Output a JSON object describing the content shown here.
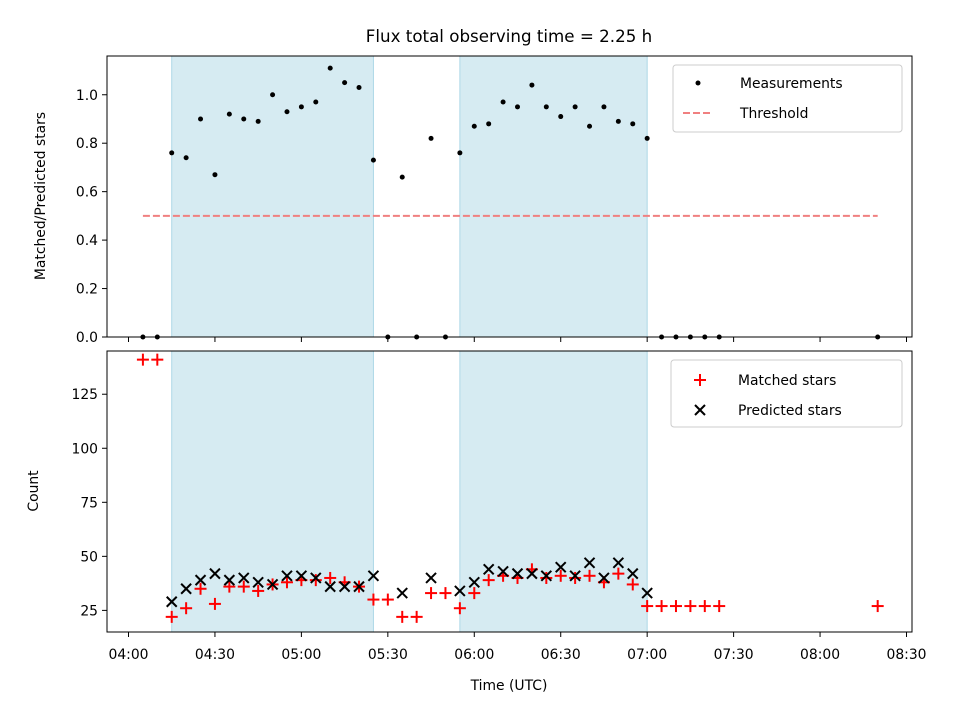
{
  "chart_data": [
    {
      "type": "scatter",
      "title": "Flux total observing time = 2.25 h",
      "xlabel": "",
      "ylabel": "Matched/Predicted stars",
      "xlim": [
        "04:00",
        "08:30"
      ],
      "ylim": [
        0,
        1.16
      ],
      "yticks": [
        0.0,
        0.2,
        0.4,
        0.6,
        0.8,
        1.0
      ],
      "ytick_labels": [
        "0.0",
        "0.2",
        "0.4",
        "0.6",
        "0.8",
        "1.0"
      ],
      "shaded_intervals": [
        [
          "04:15",
          "05:25"
        ],
        [
          "05:55",
          "07:00"
        ]
      ],
      "legend_placement": "top-right",
      "series": [
        {
          "name": "Measurements",
          "marker": "dot",
          "color": "#000000",
          "x": [
            "04:05",
            "04:10",
            "04:15",
            "04:20",
            "04:25",
            "04:30",
            "04:35",
            "04:40",
            "04:45",
            "04:50",
            "04:55",
            "05:00",
            "05:05",
            "05:10",
            "05:15",
            "05:20",
            "05:25",
            "05:30",
            "05:35",
            "05:40",
            "05:45",
            "05:50",
            "05:55",
            "06:00",
            "06:05",
            "06:10",
            "06:15",
            "06:20",
            "06:25",
            "06:30",
            "06:35",
            "06:40",
            "06:45",
            "06:50",
            "06:55",
            "07:00",
            "07:05",
            "07:10",
            "07:15",
            "07:20",
            "07:25",
            "08:20"
          ],
          "y": [
            0.0,
            0.0,
            0.76,
            0.74,
            0.9,
            0.67,
            0.92,
            0.9,
            0.89,
            1.0,
            0.93,
            0.95,
            0.97,
            1.11,
            1.05,
            1.03,
            0.73,
            0.0,
            0.66,
            0.0,
            0.82,
            0.0,
            0.76,
            0.87,
            0.88,
            0.97,
            0.95,
            1.04,
            0.95,
            0.91,
            0.95,
            0.87,
            0.95,
            0.89,
            0.88,
            0.82,
            0.0,
            0.0,
            0.0,
            0.0,
            0.0,
            0.0
          ]
        },
        {
          "name": "Threshold",
          "type": "line",
          "style": "dashed",
          "color": "#f08080",
          "x": [
            "04:05",
            "08:20"
          ],
          "y": [
            0.5,
            0.5
          ]
        }
      ]
    },
    {
      "type": "scatter",
      "title": "",
      "xlabel": "Time (UTC)",
      "ylabel": "Count",
      "xlim": [
        "04:00",
        "08:30"
      ],
      "ylim": [
        15,
        145
      ],
      "yticks": [
        25,
        50,
        75,
        100,
        125
      ],
      "ytick_labels": [
        "25",
        "50",
        "75",
        "100",
        "125"
      ],
      "xticks": [
        "04:00",
        "04:30",
        "05:00",
        "05:30",
        "06:00",
        "06:30",
        "07:00",
        "07:30",
        "08:00",
        "08:30"
      ],
      "shaded_intervals": [
        [
          "04:15",
          "05:25"
        ],
        [
          "05:55",
          "07:00"
        ]
      ],
      "legend_placement": "top-right",
      "series": [
        {
          "name": "Matched stars",
          "marker": "plus",
          "color": "#ff0000",
          "x": [
            "04:05",
            "04:10",
            "04:15",
            "04:20",
            "04:25",
            "04:30",
            "04:35",
            "04:40",
            "04:45",
            "04:50",
            "04:55",
            "05:00",
            "05:05",
            "05:10",
            "05:15",
            "05:20",
            "05:25",
            "05:30",
            "05:35",
            "05:40",
            "05:45",
            "05:50",
            "05:55",
            "06:00",
            "06:05",
            "06:10",
            "06:15",
            "06:20",
            "06:25",
            "06:30",
            "06:35",
            "06:40",
            "06:45",
            "06:50",
            "06:55",
            "07:00",
            "07:05",
            "07:10",
            "07:15",
            "07:20",
            "07:25",
            "08:20"
          ],
          "y": [
            141,
            141,
            22,
            26,
            35,
            28,
            36,
            36,
            34,
            37,
            38,
            39,
            39,
            40,
            38,
            36,
            30,
            30,
            22,
            22,
            33,
            33,
            26,
            33,
            39,
            41,
            40,
            44,
            40,
            41,
            40,
            41,
            38,
            42,
            37,
            27,
            27,
            27,
            27,
            27,
            27,
            27
          ]
        },
        {
          "name": "Predicted stars",
          "marker": "x",
          "color": "#000000",
          "x": [
            "04:15",
            "04:20",
            "04:25",
            "04:30",
            "04:35",
            "04:40",
            "04:45",
            "04:50",
            "04:55",
            "05:00",
            "05:05",
            "05:10",
            "05:15",
            "05:20",
            "05:25",
            "05:35",
            "05:45",
            "05:55",
            "06:00",
            "06:05",
            "06:10",
            "06:15",
            "06:20",
            "06:25",
            "06:30",
            "06:35",
            "06:40",
            "06:45",
            "06:50",
            "06:55",
            "07:00"
          ],
          "y": [
            29,
            35,
            39,
            42,
            39,
            40,
            38,
            37,
            41,
            41,
            40,
            36,
            36,
            36,
            41,
            33,
            40,
            34,
            38,
            44,
            43,
            42,
            42,
            41,
            45,
            41,
            47,
            40,
            47,
            42,
            33
          ]
        }
      ]
    }
  ]
}
